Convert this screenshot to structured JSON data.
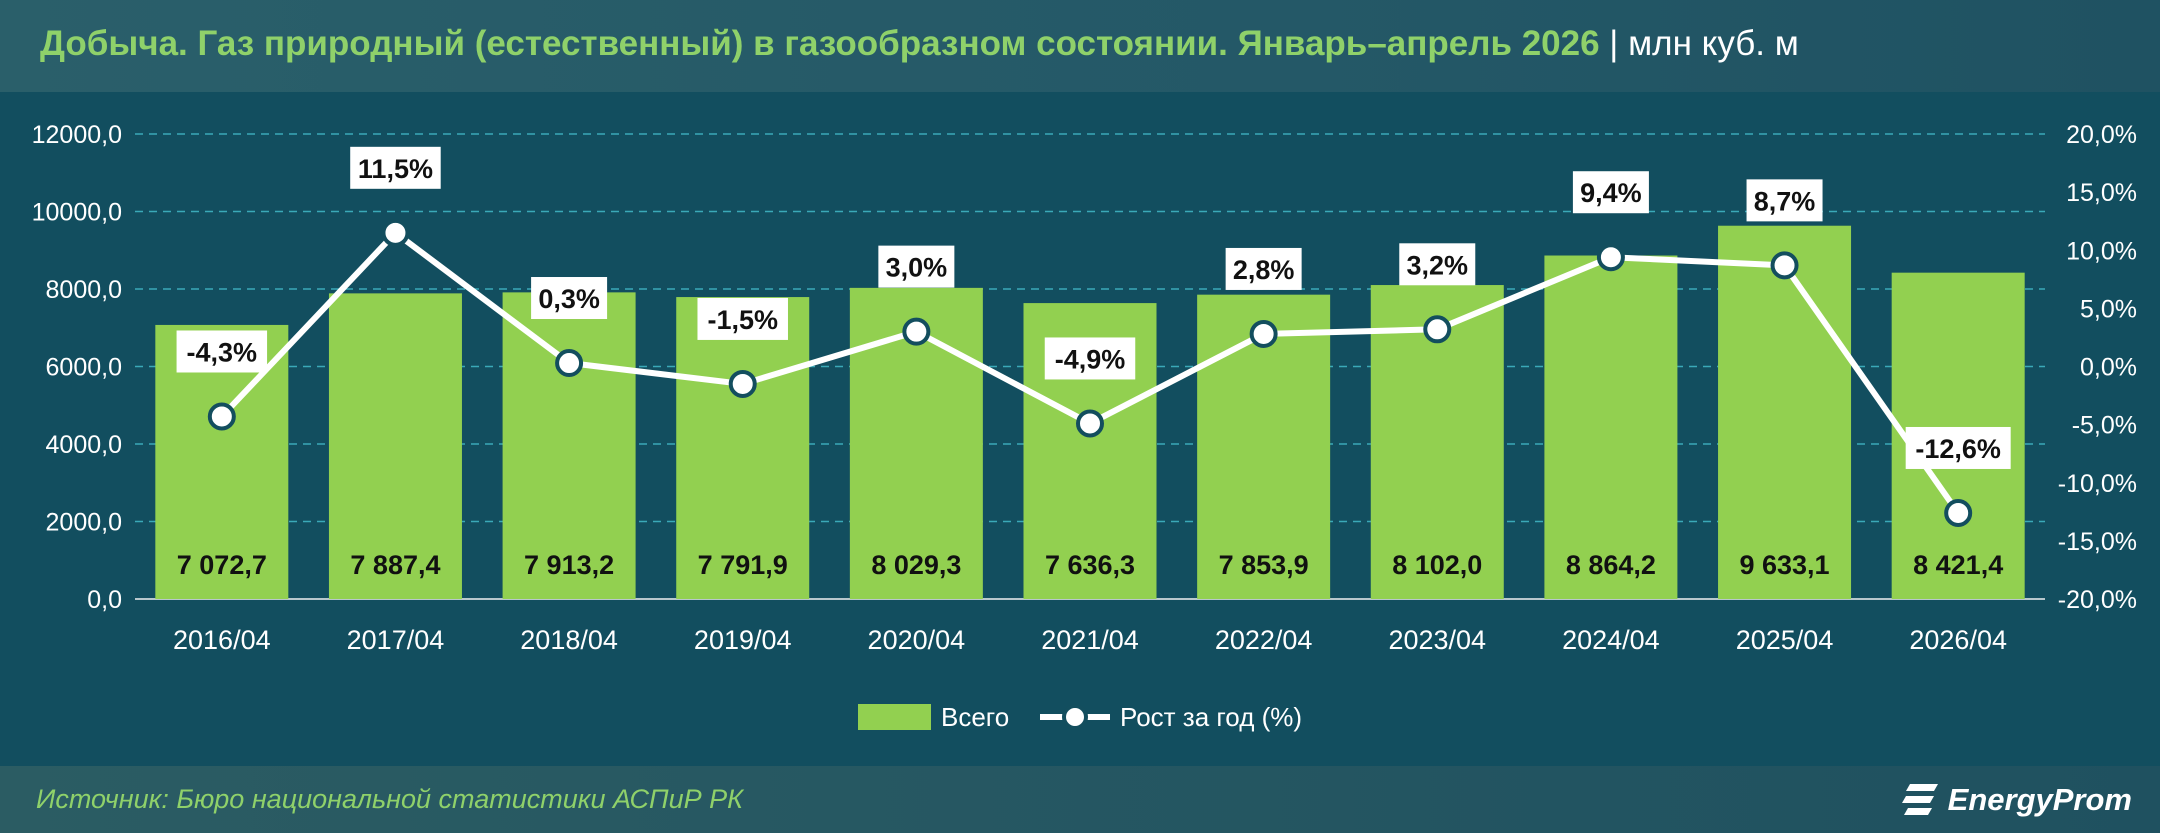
{
  "header": {
    "title": "Добыча. Газ природный (естественный) в газообразном состоянии. Январь–апрель 2026",
    "unit": " | млн куб. м"
  },
  "footer": {
    "source": "Источник: Бюро национальной статистики АСПиР РК",
    "brand": "EnergyProm"
  },
  "colors": {
    "bar": "#92d050",
    "line": "#ffffff",
    "grid": "#3aa9b8",
    "background": "#124e5f",
    "title": "#8fd16a"
  },
  "chart_data": {
    "type": "bar",
    "categories": [
      "2016/04",
      "2017/04",
      "2018/04",
      "2019/04",
      "2020/04",
      "2021/04",
      "2022/04",
      "2023/04",
      "2024/04",
      "2025/04",
      "2026/04"
    ],
    "series": [
      {
        "name": "Всего",
        "type": "bar",
        "axis": "left",
        "values": [
          7072.7,
          7887.4,
          7913.2,
          7791.9,
          8029.3,
          7636.3,
          7853.9,
          8102.0,
          8864.2,
          9633.1,
          8421.4
        ],
        "labels": [
          "7 072,7",
          "7 887,4",
          "7 913,2",
          "7 791,9",
          "8 029,3",
          "7 636,3",
          "7 853,9",
          "8 102,0",
          "8 864,2",
          "9 633,1",
          "8 421,4"
        ]
      },
      {
        "name": "Рост за год (%)",
        "type": "line",
        "axis": "right",
        "values": [
          -4.3,
          11.5,
          0.3,
          -1.5,
          3.0,
          -4.9,
          2.8,
          3.2,
          9.4,
          8.7,
          -12.6
        ],
        "labels": [
          "-4,3%",
          "11,5%",
          "0,3%",
          "-1,5%",
          "3,0%",
          "-4,9%",
          "2,8%",
          "3,2%",
          "9,4%",
          "8,7%",
          "-12,6%"
        ]
      }
    ],
    "left_axis": {
      "ylim": [
        0,
        12000
      ],
      "ticks": [
        0,
        2000,
        4000,
        6000,
        8000,
        10000,
        12000
      ],
      "tick_labels": [
        "0,0",
        "2000,0",
        "4000,0",
        "6000,0",
        "8000,0",
        "10000,0",
        "12000,0"
      ]
    },
    "right_axis": {
      "ylim": [
        -20,
        20
      ],
      "ticks": [
        -20,
        -15,
        -10,
        -5,
        0,
        5,
        10,
        15,
        20
      ],
      "tick_labels": [
        "-20,0%",
        "-15,0%",
        "-10,0%",
        "-5,0%",
        "0,0%",
        "5,0%",
        "10,0%",
        "15,0%",
        "20,0%"
      ]
    },
    "grid": true,
    "legend": "bottom"
  }
}
